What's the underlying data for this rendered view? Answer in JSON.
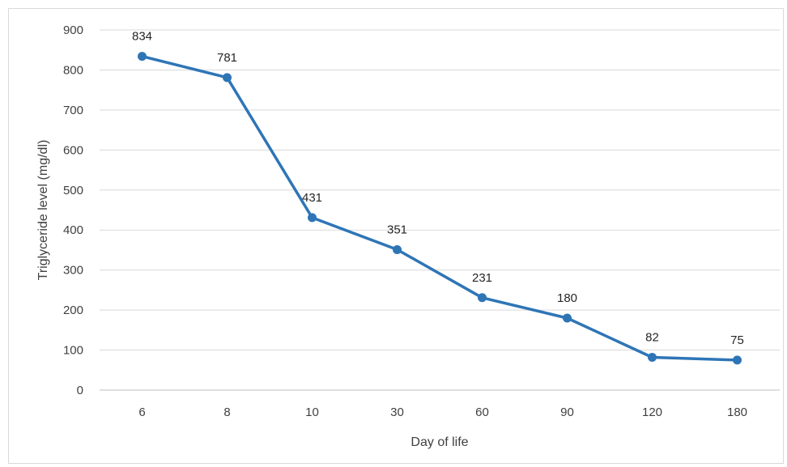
{
  "chart_data": {
    "type": "line",
    "title": "",
    "xlabel": "Day of life",
    "ylabel": "Triglyceride level (mg/dl)",
    "categories": [
      "6",
      "8",
      "10",
      "30",
      "60",
      "90",
      "120",
      "180"
    ],
    "series": [
      {
        "values": [
          834,
          781,
          431,
          351,
          231,
          180,
          82,
          75
        ]
      }
    ],
    "ylim": [
      0,
      900
    ],
    "yticks": [
      0,
      100,
      200,
      300,
      400,
      500,
      600,
      700,
      800,
      900
    ],
    "grid": true,
    "legend": "none",
    "data_labels": true,
    "colors": {
      "series": "#2E75B6",
      "grid": "#d9d9d9",
      "text": "#404040"
    }
  }
}
